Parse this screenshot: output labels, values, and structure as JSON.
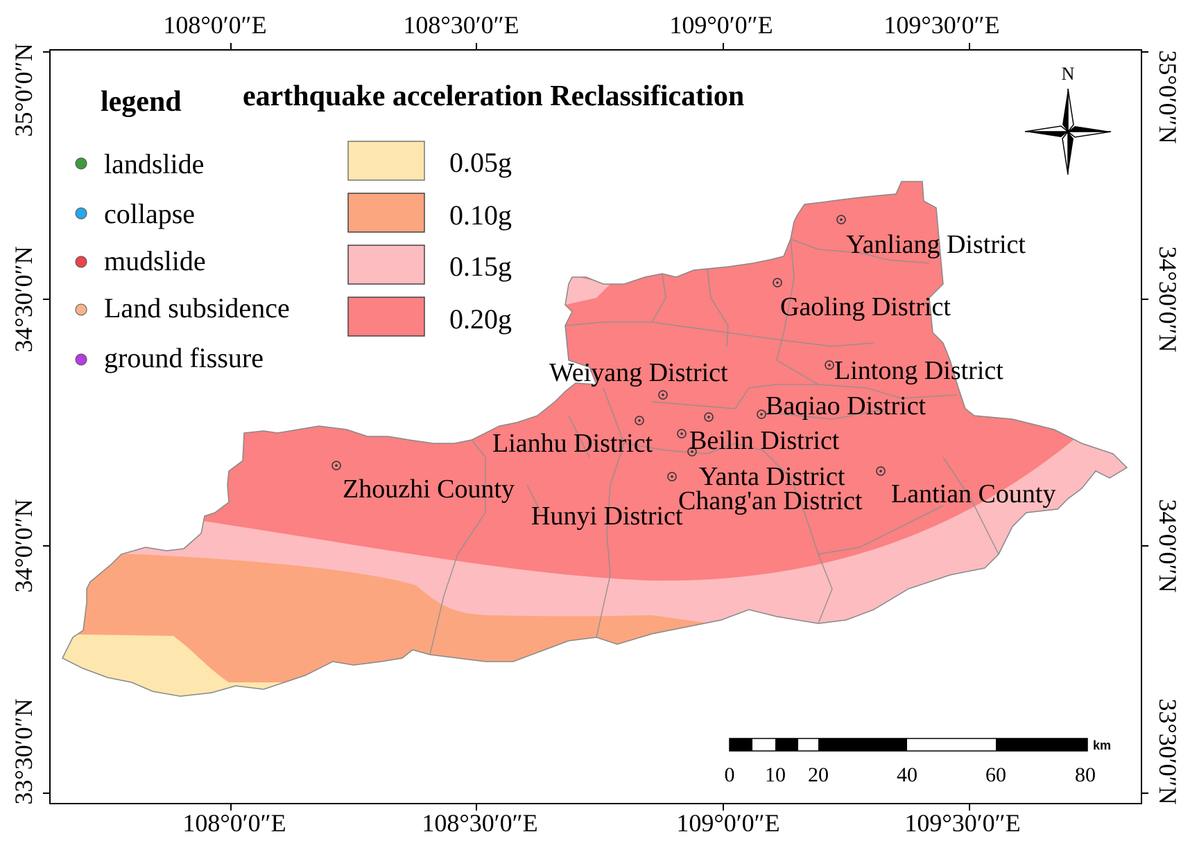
{
  "map": {
    "title": "earthquake acceleration Reclassification",
    "legend_title": "legend",
    "north_label": "N",
    "top_ticks": [
      "108°0′0″E",
      "108°30′0″E",
      "109°0′0″E",
      "109°30′0″E"
    ],
    "bottom_ticks": [
      "108°0′0″E",
      "108°30′0″E",
      "109°0′0″E",
      "109°30′0″E"
    ],
    "left_ticks": [
      "35°0′0″N",
      "34°30′0″N",
      "34°0′0″N",
      "33°30′0″N"
    ],
    "right_ticks": [
      "35°0′0″N",
      "34°30′0″N",
      "34°0′0″N",
      "33°30′0″N"
    ],
    "hazards": [
      {
        "label": "landslide",
        "color": "#3f9a3f"
      },
      {
        "label": "collapse",
        "color": "#2aa6e6"
      },
      {
        "label": "mudslide",
        "color": "#e8454c"
      },
      {
        "label": "Land subsidence",
        "color": "#f7b48c"
      },
      {
        "label": "ground fissure",
        "color": "#b43ee0"
      }
    ],
    "classes": [
      {
        "label": "0.05g",
        "color": "#fde7ae"
      },
      {
        "label": "0.10g",
        "color": "#fba67f"
      },
      {
        "label": "0.15g",
        "color": "#fdbcbf"
      },
      {
        "label": "0.20g",
        "color": "#fb8182"
      }
    ],
    "districts": [
      "Yanliang District",
      "Gaoling District",
      "Lintong District",
      "Weiyang District",
      "Baqiao District",
      "Lianhu District",
      "Beilin District",
      "Zhouzhi County",
      "Yanta District",
      "Chang'an District",
      "Lantian County",
      "Hunyi District"
    ],
    "scale": {
      "unit": "km",
      "ticks": [
        "0",
        "10",
        "20",
        "40",
        "60",
        "80"
      ]
    }
  }
}
